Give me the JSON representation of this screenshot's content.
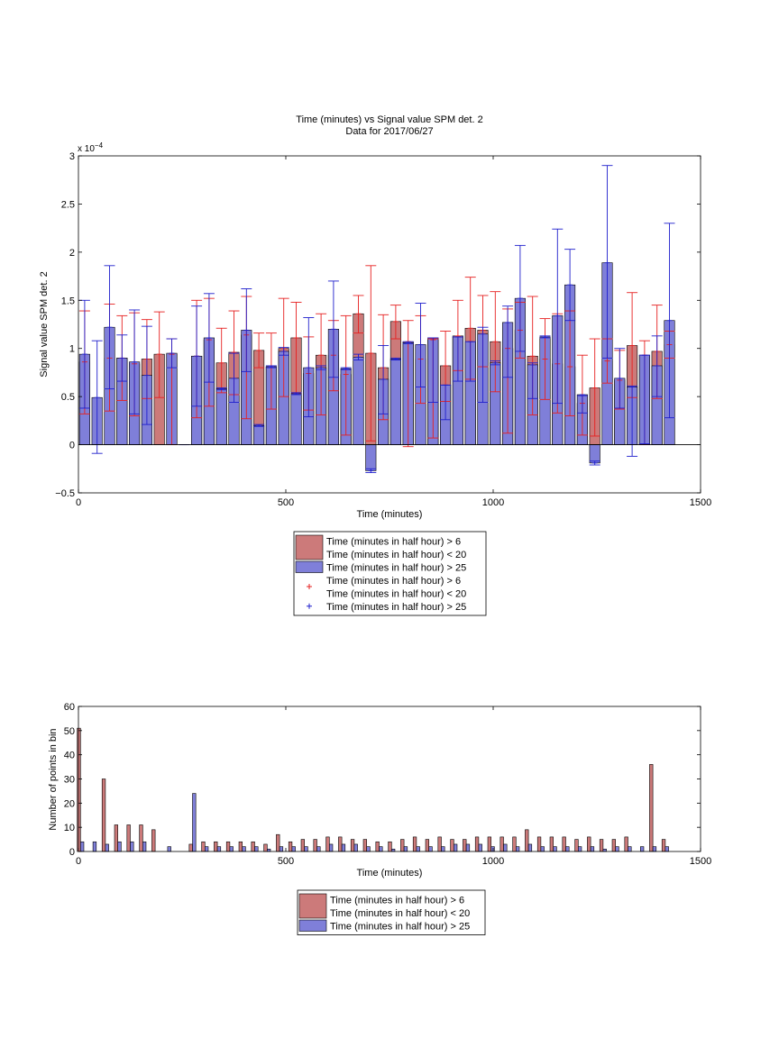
{
  "figure": {
    "background": "#ffffff"
  },
  "colors": {
    "red_bar": "#cc7a7a",
    "blue_bar": "#7f7fd9",
    "red_err": "#e62020",
    "blue_err": "#1f1fcc",
    "axis": "#000000"
  },
  "chart_data": [
    {
      "type": "bar",
      "title": "Time (minutes) vs Signal value SPM det. 2",
      "subtitle": "Data for 2017/06/27",
      "xlabel": "Time (minutes)",
      "ylabel": "Signal value SPM det. 2",
      "exponent_label": "x 10",
      "exponent_power": "−4",
      "xlim": [
        0,
        1500
      ],
      "ylim": [
        -0.5,
        3
      ],
      "xticks": [
        0,
        500,
        1000,
        1500
      ],
      "yticks": [
        -0.5,
        0,
        0.5,
        1,
        1.5,
        2,
        2.5,
        3
      ],
      "ytick_labels": [
        "−0.5",
        "0",
        "0.5",
        "1",
        "1.5",
        "2",
        "2.5",
        "3"
      ],
      "bar_width": 25,
      "legend_position": "below",
      "series": [
        {
          "name": "Time (minutes in half hour) > 6",
          "name_line2": "Time (minutes in half hour) < 20",
          "color": "#cc7a7a",
          "points": [
            {
              "x": 15,
              "y": 0.86,
              "lo": 0.32,
              "hi": 1.39
            },
            {
              "x": 75,
              "y": 0.9,
              "lo": 0.35,
              "hi": 1.46
            },
            {
              "x": 105,
              "y": 0.9,
              "lo": 0.46,
              "hi": 1.34
            },
            {
              "x": 135,
              "y": 0.84,
              "lo": 0.3,
              "hi": 1.37
            },
            {
              "x": 165,
              "y": 0.89,
              "lo": 0.48,
              "hi": 1.3
            },
            {
              "x": 195,
              "y": 0.94,
              "lo": 0.49,
              "hi": 1.38
            },
            {
              "x": 225,
              "y": 0.94,
              "lo": 0.0,
              "hi": 1.1
            },
            {
              "x": 285,
              "y": 0.92,
              "lo": 0.28,
              "hi": 1.5
            },
            {
              "x": 315,
              "y": 1.09,
              "lo": 0.4,
              "hi": 1.52
            },
            {
              "x": 345,
              "y": 0.85,
              "lo": 0.54,
              "hi": 1.21
            },
            {
              "x": 375,
              "y": 0.96,
              "lo": 0.52,
              "hi": 1.39
            },
            {
              "x": 405,
              "y": 1.14,
              "lo": 0.27,
              "hi": 1.54
            },
            {
              "x": 435,
              "y": 0.98,
              "lo": 0.8,
              "hi": 1.16
            },
            {
              "x": 465,
              "y": 0.81,
              "lo": 0.37,
              "hi": 1.16
            },
            {
              "x": 495,
              "y": 1.0,
              "lo": 0.5,
              "hi": 1.52
            },
            {
              "x": 525,
              "y": 1.11,
              "lo": 0.54,
              "hi": 1.48
            },
            {
              "x": 555,
              "y": 0.74,
              "lo": 0.36,
              "hi": 1.12
            },
            {
              "x": 585,
              "y": 0.93,
              "lo": 0.31,
              "hi": 1.36
            },
            {
              "x": 615,
              "y": 0.93,
              "lo": 0.56,
              "hi": 1.29
            },
            {
              "x": 645,
              "y": 0.73,
              "lo": 0.1,
              "hi": 1.34
            },
            {
              "x": 675,
              "y": 1.36,
              "lo": 1.16,
              "hi": 1.55
            },
            {
              "x": 705,
              "y": 0.95,
              "lo": 0.04,
              "hi": 1.86
            },
            {
              "x": 735,
              "y": 0.8,
              "lo": 0.26,
              "hi": 1.35
            },
            {
              "x": 765,
              "y": 1.28,
              "lo": 1.1,
              "hi": 1.45
            },
            {
              "x": 795,
              "y": 1.07,
              "lo": -0.02,
              "hi": 1.29
            },
            {
              "x": 825,
              "y": 0.89,
              "lo": 0.43,
              "hi": 1.34
            },
            {
              "x": 855,
              "y": 1.09,
              "lo": 0.07,
              "hi": 1.1
            },
            {
              "x": 885,
              "y": 0.82,
              "lo": 0.45,
              "hi": 1.18
            },
            {
              "x": 915,
              "y": 1.13,
              "lo": 0.77,
              "hi": 1.5
            },
            {
              "x": 945,
              "y": 1.21,
              "lo": 0.68,
              "hi": 1.74
            },
            {
              "x": 975,
              "y": 1.19,
              "lo": 0.81,
              "hi": 1.55
            },
            {
              "x": 1005,
              "y": 1.07,
              "lo": 0.55,
              "hi": 1.59
            },
            {
              "x": 1035,
              "y": 1.0,
              "lo": 0.12,
              "hi": 1.41
            },
            {
              "x": 1065,
              "y": 1.19,
              "lo": 0.9,
              "hi": 1.48
            },
            {
              "x": 1095,
              "y": 0.92,
              "lo": 0.31,
              "hi": 1.54
            },
            {
              "x": 1125,
              "y": 0.89,
              "lo": 0.47,
              "hi": 1.31
            },
            {
              "x": 1155,
              "y": 0.84,
              "lo": 0.33,
              "hi": 1.36
            },
            {
              "x": 1185,
              "y": 0.81,
              "lo": 0.3,
              "hi": 1.39
            },
            {
              "x": 1215,
              "y": 0.43,
              "lo": 0.1,
              "hi": 0.93
            },
            {
              "x": 1245,
              "y": 0.59,
              "lo": 0.09,
              "hi": 1.1
            },
            {
              "x": 1275,
              "y": 0.87,
              "lo": 0.64,
              "hi": 1.1
            },
            {
              "x": 1305,
              "y": 0.67,
              "lo": 0.37,
              "hi": 0.98
            },
            {
              "x": 1335,
              "y": 1.03,
              "lo": 0.49,
              "hi": 1.58
            },
            {
              "x": 1365,
              "y": 0.93,
              "lo": 0.0,
              "hi": 1.08
            },
            {
              "x": 1395,
              "y": 0.97,
              "lo": 0.48,
              "hi": 1.45
            },
            {
              "x": 1425,
              "y": 1.04,
              "lo": 0.9,
              "hi": 1.18
            }
          ]
        },
        {
          "name": "Time (minutes in half hour) > 25",
          "color": "#7f7fd9",
          "points": [
            {
              "x": 15,
              "y": 0.94,
              "lo": 0.38,
              "hi": 1.5
            },
            {
              "x": 45,
              "y": 0.49,
              "lo": -0.09,
              "hi": 1.08
            },
            {
              "x": 75,
              "y": 1.22,
              "lo": 0.58,
              "hi": 1.86
            },
            {
              "x": 105,
              "y": 0.9,
              "lo": 0.66,
              "hi": 1.14
            },
            {
              "x": 135,
              "y": 0.86,
              "lo": 0.32,
              "hi": 1.4
            },
            {
              "x": 165,
              "y": 0.72,
              "lo": 0.21,
              "hi": 1.23
            },
            {
              "x": 225,
              "y": 0.95,
              "lo": 0.8,
              "hi": 1.1
            },
            {
              "x": 255,
              "y": 0.0,
              "lo": 0.0,
              "hi": 0.0
            },
            {
              "x": 285,
              "y": 0.92,
              "lo": 0.4,
              "hi": 1.44
            },
            {
              "x": 315,
              "y": 1.11,
              "lo": 0.65,
              "hi": 1.57
            },
            {
              "x": 345,
              "y": 0.58,
              "lo": 0.57,
              "hi": 0.59
            },
            {
              "x": 375,
              "y": 0.69,
              "lo": 0.44,
              "hi": 0.95
            },
            {
              "x": 405,
              "y": 1.19,
              "lo": 0.76,
              "hi": 1.62
            },
            {
              "x": 435,
              "y": 0.2,
              "lo": 0.19,
              "hi": 0.21
            },
            {
              "x": 465,
              "y": 0.81,
              "lo": 0.8,
              "hi": 0.82
            },
            {
              "x": 495,
              "y": 0.97,
              "lo": 0.93,
              "hi": 1.01
            },
            {
              "x": 525,
              "y": 0.53,
              "lo": 0.52,
              "hi": 0.54
            },
            {
              "x": 555,
              "y": 0.8,
              "lo": 0.29,
              "hi": 1.32
            },
            {
              "x": 585,
              "y": 0.8,
              "lo": 0.78,
              "hi": 0.82
            },
            {
              "x": 615,
              "y": 1.2,
              "lo": 0.7,
              "hi": 1.7
            },
            {
              "x": 645,
              "y": 0.79,
              "lo": 0.78,
              "hi": 0.8
            },
            {
              "x": 675,
              "y": 0.91,
              "lo": 0.88,
              "hi": 0.94
            },
            {
              "x": 705,
              "y": -0.27,
              "lo": -0.29,
              "hi": -0.25
            },
            {
              "x": 735,
              "y": 0.68,
              "lo": 0.32,
              "hi": 1.03
            },
            {
              "x": 765,
              "y": 0.89,
              "lo": 0.88,
              "hi": 0.9
            },
            {
              "x": 795,
              "y": 1.06,
              "lo": 1.05,
              "hi": 1.07
            },
            {
              "x": 825,
              "y": 1.04,
              "lo": 0.6,
              "hi": 1.47
            },
            {
              "x": 855,
              "y": 1.11,
              "lo": 0.44,
              "hi": 1.11
            },
            {
              "x": 885,
              "y": 0.62,
              "lo": 0.26,
              "hi": 0.62
            },
            {
              "x": 915,
              "y": 1.12,
              "lo": 0.66,
              "hi": 1.12
            },
            {
              "x": 945,
              "y": 1.07,
              "lo": 0.66,
              "hi": 1.07
            },
            {
              "x": 975,
              "y": 1.15,
              "lo": 0.44,
              "hi": 1.22
            },
            {
              "x": 1005,
              "y": 0.85,
              "lo": 0.83,
              "hi": 0.87
            },
            {
              "x": 1035,
              "y": 1.27,
              "lo": 0.7,
              "hi": 1.44
            },
            {
              "x": 1065,
              "y": 1.52,
              "lo": 0.97,
              "hi": 2.07
            },
            {
              "x": 1095,
              "y": 0.83,
              "lo": 0.48,
              "hi": 0.85
            },
            {
              "x": 1125,
              "y": 1.12,
              "lo": 1.11,
              "hi": 1.13
            },
            {
              "x": 1155,
              "y": 1.34,
              "lo": 0.43,
              "hi": 2.24
            },
            {
              "x": 1185,
              "y": 1.66,
              "lo": 1.29,
              "hi": 2.03
            },
            {
              "x": 1215,
              "y": 0.52,
              "lo": 0.33,
              "hi": 0.51
            },
            {
              "x": 1245,
              "y": -0.19,
              "lo": -0.21,
              "hi": -0.17
            },
            {
              "x": 1275,
              "y": 1.89,
              "lo": 0.9,
              "hi": 2.9
            },
            {
              "x": 1305,
              "y": 0.69,
              "lo": 0.38,
              "hi": 1.0
            },
            {
              "x": 1335,
              "y": 0.6,
              "lo": -0.12,
              "hi": 0.61
            },
            {
              "x": 1365,
              "y": 0.93,
              "lo": 0.01,
              "hi": 0.93
            },
            {
              "x": 1395,
              "y": 0.82,
              "lo": 0.5,
              "hi": 1.13
            },
            {
              "x": 1425,
              "y": 1.29,
              "lo": 0.28,
              "hi": 2.3
            }
          ]
        }
      ],
      "legend": [
        {
          "kind": "patch",
          "color": "#cc7a7a",
          "lines": [
            "Time (minutes in half hour) > 6",
            "Time (minutes in half hour) < 20"
          ]
        },
        {
          "kind": "patch",
          "color": "#7f7fd9",
          "lines": [
            "Time (minutes in half hour) > 25"
          ]
        },
        {
          "kind": "marker",
          "color": "#e62020",
          "lines": [
            "Time (minutes in half hour) > 6",
            "Time (minutes in half hour) < 20"
          ]
        },
        {
          "kind": "marker",
          "color": "#1f1fcc",
          "lines": [
            "Time (minutes in half hour) > 25"
          ]
        }
      ]
    },
    {
      "type": "bar",
      "title": "",
      "xlabel": "Time (minutes)",
      "ylabel": "Number of points in bin",
      "xlim": [
        0,
        1500
      ],
      "ylim": [
        0,
        60
      ],
      "xticks": [
        0,
        500,
        1000,
        1500
      ],
      "yticks": [
        0,
        10,
        20,
        30,
        40,
        50,
        60
      ],
      "bar_width": 8,
      "legend_position": "below",
      "categories": [
        5,
        35,
        65,
        95,
        125,
        155,
        185,
        215,
        245,
        275,
        305,
        335,
        365,
        395,
        425,
        455,
        485,
        515,
        545,
        575,
        605,
        635,
        665,
        695,
        725,
        755,
        785,
        815,
        845,
        875,
        905,
        935,
        965,
        995,
        1025,
        1055,
        1085,
        1115,
        1145,
        1175,
        1205,
        1235,
        1265,
        1295,
        1325,
        1355,
        1385,
        1415
      ],
      "series": [
        {
          "name": "Time (minutes in half hour) > 6",
          "name_line2": "Time (minutes in half hour) < 20",
          "color": "#cc7a7a",
          "values": [
            51,
            0,
            30,
            11,
            11,
            11,
            9,
            0,
            0,
            3,
            4,
            4,
            4,
            4,
            4,
            3,
            7,
            4,
            5,
            5,
            6,
            6,
            5,
            5,
            4,
            4,
            5,
            6,
            5,
            6,
            5,
            5,
            6,
            6,
            6,
            6,
            9,
            6,
            6,
            6,
            5,
            6,
            5,
            5,
            6,
            0,
            36,
            5
          ]
        },
        {
          "name": "Time (minutes in half hour) > 25",
          "color": "#7f7fd9",
          "values": [
            4,
            4,
            3,
            4,
            4,
            4,
            0,
            2,
            0,
            24,
            2,
            2,
            2,
            2,
            2,
            1,
            2,
            2,
            2,
            2,
            3,
            3,
            3,
            2,
            2,
            1,
            2,
            2,
            2,
            2,
            3,
            3,
            3,
            2,
            3,
            2,
            3,
            2,
            2,
            2,
            2,
            2,
            1,
            2,
            2,
            2,
            2,
            2
          ]
        }
      ],
      "legend": [
        {
          "kind": "patch",
          "color": "#cc7a7a",
          "lines": [
            "Time (minutes in half hour) > 6",
            "Time (minutes in half hour) < 20"
          ]
        },
        {
          "kind": "patch",
          "color": "#7f7fd9",
          "lines": [
            "Time (minutes in half hour) > 25"
          ]
        }
      ]
    }
  ]
}
